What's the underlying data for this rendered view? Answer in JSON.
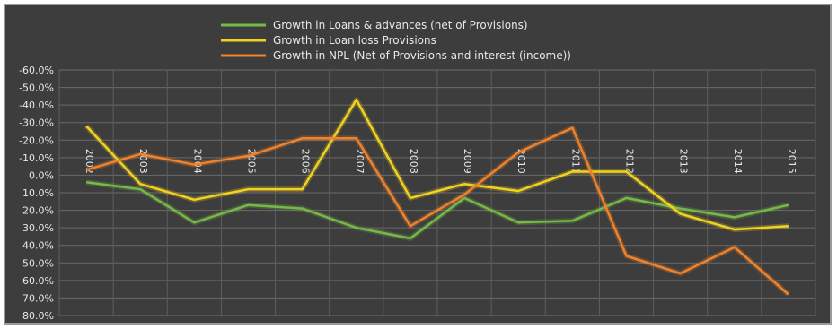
{
  "chart_data": {
    "type": "line",
    "categories": [
      "2002",
      "2003",
      "2004",
      "2005",
      "2006",
      "2007",
      "2008",
      "2009",
      "2010",
      "2011",
      "2012",
      "2013",
      "2014",
      "2015"
    ],
    "yticks": [
      "-60.0%",
      "-50.0%",
      "-40.0%",
      "-30.0%",
      "-20.0%",
      "-10.0%",
      "0.0%",
      "10.0%",
      "20.0%",
      "30.0%",
      "40.0%",
      "50.0%",
      "60.0%",
      "70.0%",
      "80.0%"
    ],
    "ylim": [
      -60,
      80
    ],
    "ytick_step": 10,
    "y_inverted": true,
    "grid": true,
    "legend_position": "top",
    "series": [
      {
        "name": "Growth in Loans & advances (net of Provisions)",
        "color": "#76b947",
        "values": [
          4,
          8,
          27,
          17,
          19,
          30,
          36,
          13,
          27,
          26,
          13,
          19,
          24,
          17
        ]
      },
      {
        "name": "Growth in Loan loss Provisions",
        "color": "#f2d21f",
        "values": [
          -28,
          5,
          14,
          8,
          8,
          -43,
          13,
          5,
          9,
          -2,
          -2,
          22,
          31,
          29
        ]
      },
      {
        "name": "Growth in NPL (Net of Provisions and interest (income))",
        "color": "#f0822b",
        "values": [
          -3,
          -12,
          -6,
          -11,
          -21,
          -21,
          29,
          11,
          -13,
          -27,
          46,
          56,
          41,
          68
        ]
      }
    ]
  }
}
